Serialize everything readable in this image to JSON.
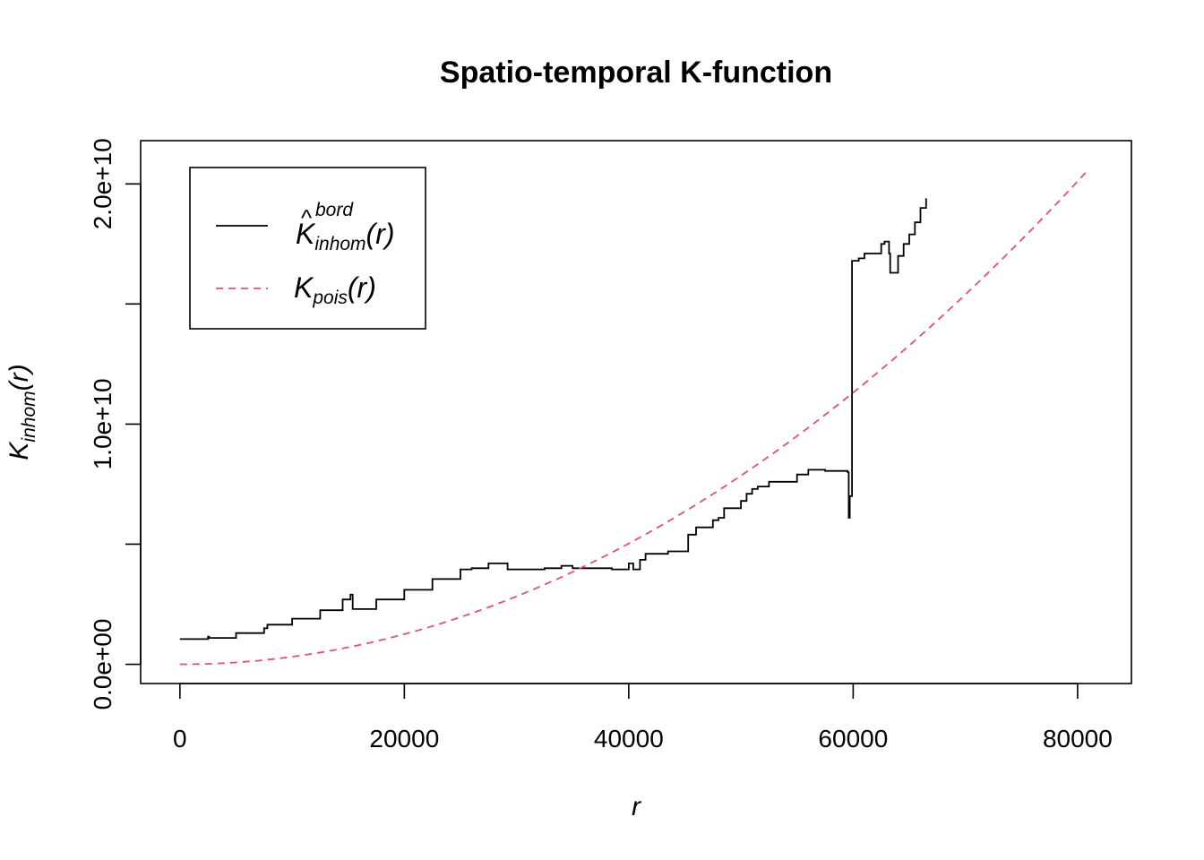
{
  "chart_data": {
    "type": "line",
    "title": "Spatio-temporal K-function",
    "xlabel": "r",
    "ylabel": {
      "base": "K",
      "subscript": "inhom",
      "arg": "(r)"
    },
    "xlim": [
      -3500,
      84800
    ],
    "ylim": [
      -800000000,
      21800000000
    ],
    "x_ticks": [
      {
        "value": 0,
        "label": "0"
      },
      {
        "value": 20000,
        "label": "20000"
      },
      {
        "value": 40000,
        "label": "40000"
      },
      {
        "value": 60000,
        "label": "60000"
      },
      {
        "value": 80000,
        "label": "80000"
      }
    ],
    "y_ticks": [
      {
        "value": 0,
        "label": "0.0e+00"
      },
      {
        "value": 5000000000,
        "label": ""
      },
      {
        "value": 10000000000,
        "label": "1.0e+10"
      },
      {
        "value": 15000000000,
        "label": ""
      },
      {
        "value": 20000000000,
        "label": "2.0e+10"
      }
    ],
    "grid": false,
    "legend_position": "top-left",
    "series": [
      {
        "legend": {
          "base": "K",
          "hat": "^",
          "superscript": "bord",
          "subscript": "inhom",
          "arg": "(r)"
        },
        "color": "#000000",
        "dash": "solid",
        "x": [
          0,
          2500,
          2600,
          5000,
          7500,
          7800,
          10000,
          12500,
          14500,
          15200,
          15400,
          17500,
          20000,
          22500,
          25000,
          26000,
          27500,
          29000,
          29200,
          32500,
          34000,
          35000,
          36500,
          38500,
          40000,
          40400,
          41000,
          41500,
          43500,
          45000,
          45300,
          46000,
          47500,
          48000,
          48500,
          50000,
          50500,
          51000,
          51500,
          52500,
          55000,
          56000,
          57500,
          59500,
          59600,
          59700,
          59900,
          60500,
          61000,
          62500,
          62800,
          63200,
          63300,
          63700,
          64000,
          64500,
          65000,
          65500,
          66000,
          66500
        ],
        "y": [
          1050000000,
          1150000000,
          1100000000,
          1300000000,
          1500000000,
          1650000000,
          1900000000,
          2250000000,
          2700000000,
          2900000000,
          2300000000,
          2700000000,
          3100000000,
          3550000000,
          3950000000,
          4000000000,
          4200000000,
          4200000000,
          3950000000,
          4000000000,
          4100000000,
          4000000000,
          4000000000,
          3950000000,
          4200000000,
          3950000000,
          4350000000,
          4600000000,
          4700000000,
          4700000000,
          5400000000,
          5700000000,
          6000000000,
          6100000000,
          6500000000,
          6800000000,
          7100000000,
          7300000000,
          7400000000,
          7600000000,
          7900000000,
          8100000000,
          8050000000,
          8000000000,
          6100000000,
          7000000000,
          16800000000,
          16900000000,
          17100000000,
          17500000000,
          17600000000,
          17100000000,
          16300000000,
          16300000000,
          17000000000,
          17500000000,
          17900000000,
          18400000000,
          19000000000,
          19400000000
        ]
      },
      {
        "legend": {
          "base": "K",
          "subscript": "pois",
          "arg": "(r)"
        },
        "color": "#DF536B",
        "dash": "dashed",
        "formula": "pi * r^2",
        "x_range": [
          0,
          81000
        ]
      }
    ]
  }
}
